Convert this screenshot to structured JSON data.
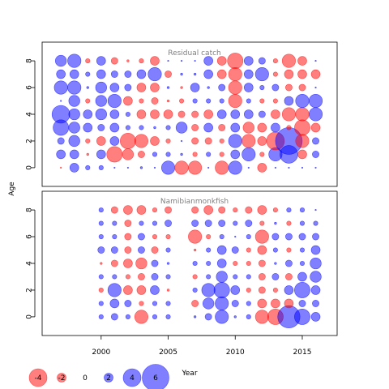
{
  "chart_data": {
    "type": "bubble-grid",
    "colors": {
      "negative": "#FF0000",
      "positive": "#0000FF",
      "fill_alpha": 0.5
    },
    "x_axis": {
      "label": "Year",
      "ticks": [
        2000,
        2005,
        2010,
        2015
      ],
      "range": [
        1995.6,
        2017.6
      ]
    },
    "y_axis": {
      "label": "Age",
      "ticks": [
        0,
        2,
        4,
        6,
        8
      ],
      "range": [
        -1.4,
        9.4
      ]
    },
    "legend": {
      "values": [
        -4,
        -2,
        0,
        2,
        4,
        6
      ],
      "labels": [
        "-4",
        "-2",
        "0",
        "2",
        "4",
        "6"
      ]
    },
    "panels": [
      {
        "title": "Residual catch",
        "years": [
          1997,
          1998,
          1999,
          2000,
          2001,
          2002,
          2003,
          2004,
          2005,
          2006,
          2007,
          2008,
          2009,
          2010,
          2011,
          2012,
          2013,
          2014,
          2015,
          2016
        ],
        "ages": [
          0,
          1,
          2,
          3,
          4,
          5,
          6,
          7,
          8
        ],
        "residuals": [
          [
            -0.3,
            2.0,
            1.0,
            1.0,
            0.0,
            0.0,
            0.5,
            0.0,
            3.0,
            -3.0,
            -3.0,
            0.0,
            -3.0,
            3.0,
            0.0,
            -2.0,
            0.0,
            0.0,
            0.0,
            0.0
          ],
          [
            2.0,
            2.0,
            -0.5,
            2.0,
            -3.5,
            -2.5,
            -1.5,
            1.0,
            1.0,
            0.5,
            -1.0,
            1.0,
            -1.0,
            2.0,
            3.0,
            -1.0,
            3.0,
            4.0,
            -2.0,
            1.5
          ],
          [
            1.5,
            2.5,
            -1.0,
            -2.0,
            2.0,
            -3.5,
            -3.0,
            -2.0,
            -1.0,
            0.0,
            -1.5,
            -1.5,
            -1.0,
            3.0,
            -3.0,
            -2.0,
            -4.0,
            6.0,
            -3.0,
            1.5
          ],
          [
            3.5,
            2.5,
            2.0,
            1.5,
            2.0,
            1.0,
            1.0,
            0.5,
            1.0,
            2.5,
            -1.5,
            2.0,
            -1.5,
            2.0,
            -2.5,
            -2.0,
            2.0,
            -1.0,
            -3.5,
            -2.0
          ],
          [
            4.0,
            2.5,
            2.0,
            2.5,
            2.0,
            1.0,
            -2.0,
            -2.0,
            -2.0,
            -1.5,
            -1.5,
            -2.0,
            2.0,
            2.0,
            2.0,
            1.5,
            -2.0,
            -3.0,
            -3.0,
            3.0
          ],
          [
            0.0,
            2.5,
            -1.0,
            2.5,
            3.0,
            -2.0,
            -1.0,
            -1.5,
            -0.5,
            -1.0,
            1.0,
            1.0,
            1.0,
            -3.0,
            1.0,
            -1.0,
            -1.0,
            2.0,
            3.0,
            3.0
          ],
          [
            3.0,
            3.0,
            0.5,
            2.5,
            2.0,
            1.5,
            -2.0,
            -2.0,
            0.5,
            -0.5,
            2.0,
            0.5,
            1.5,
            -3.0,
            2.0,
            1.0,
            1.5,
            -1.5,
            -1.5,
            0.0
          ],
          [
            2.0,
            2.0,
            1.0,
            2.0,
            1.5,
            1.5,
            2.0,
            3.0,
            -1.5,
            0.5,
            0.5,
            2.0,
            -2.0,
            -3.0,
            2.0,
            3.0,
            -1.0,
            -2.0,
            -2.0,
            -2.0
          ],
          [
            2.5,
            3.0,
            -1.0,
            2.0,
            -1.5,
            -0.5,
            -1.0,
            -2.0,
            0.0,
            0.0,
            0.0,
            2.0,
            -2.0,
            -3.5,
            2.0,
            1.5,
            -1.0,
            -3.0,
            -2.0,
            0.0
          ]
        ]
      },
      {
        "title": "Namibianmonkfish",
        "years": [
          2000,
          2001,
          2002,
          2003,
          2004,
          2005,
          2007,
          2008,
          2009,
          2010,
          2011,
          2012,
          2013,
          2014,
          2015,
          2016
        ],
        "ages": [
          0,
          1,
          2,
          3,
          4,
          5,
          6,
          7,
          8
        ],
        "residuals": [
          [
            1.0,
            1.5,
            1.0,
            -3.0,
            1.0,
            1.0,
            0.5,
            1.5,
            3.0,
            0.5,
            1.0,
            -3.0,
            -3.5,
            5.0,
            3.5,
            2.0
          ],
          [
            1.0,
            2.0,
            1.5,
            -1.0,
            1.0,
            1.0,
            -1.5,
            2.5,
            3.0,
            1.5,
            1.0,
            -2.0,
            -2.0,
            -2.0,
            1.5,
            1.5
          ],
          [
            -1.0,
            3.0,
            -2.0,
            -2.0,
            2.0,
            -0.5,
            1.0,
            3.0,
            3.5,
            2.0,
            -1.0,
            -1.5,
            -1.0,
            2.0,
            3.5,
            2.0
          ],
          [
            1.0,
            1.0,
            -1.0,
            -1.5,
            1.5,
            1.0,
            -1.0,
            1.0,
            2.5,
            1.0,
            1.0,
            -1.5,
            1.5,
            -1.5,
            2.0,
            2.5
          ],
          [
            -0.5,
            -1.5,
            -2.0,
            -2.5,
            1.5,
            0.5,
            1.0,
            1.0,
            2.0,
            -1.0,
            -1.0,
            -1.5,
            0.5,
            1.5,
            1.0,
            2.5
          ],
          [
            1.5,
            1.5,
            -1.5,
            1.5,
            -1.5,
            1.0,
            -0.5,
            1.0,
            2.0,
            1.5,
            -1.0,
            -2.0,
            1.0,
            -1.0,
            1.0,
            2.0
          ],
          [
            1.0,
            1.0,
            -1.5,
            1.5,
            -1.0,
            -1.0,
            -3.0,
            -1.0,
            1.0,
            0.0,
            1.0,
            -3.0,
            1.5,
            1.5,
            1.5,
            1.5
          ],
          [
            1.0,
            1.0,
            -1.5,
            1.0,
            1.0,
            1.5,
            1.5,
            1.5,
            1.5,
            1.0,
            1.5,
            -1.0,
            0.5,
            -1.0,
            1.0,
            1.0
          ],
          [
            1.0,
            -1.5,
            -2.0,
            -2.0,
            -1.0,
            -1.5,
            -1.5,
            -2.0,
            -1.5,
            -1.0,
            -1.5,
            -2.0,
            -1.0,
            1.0,
            1.0,
            0.0
          ]
        ]
      }
    ]
  }
}
